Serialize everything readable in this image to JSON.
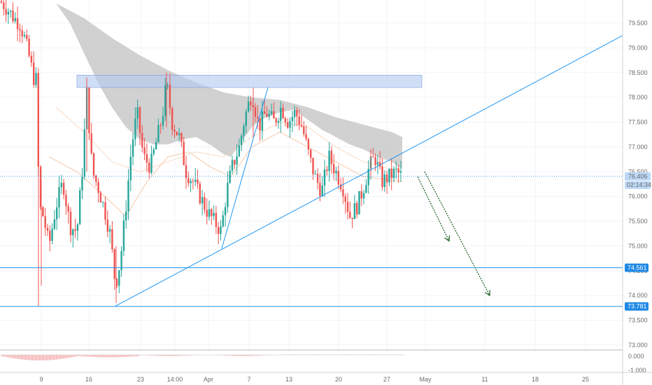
{
  "chart_data": {
    "type": "candlestick",
    "price_axis": {
      "ylim": [
        72.9,
        79.9
      ],
      "ticks": [
        "79.500",
        "79.000",
        "78.500",
        "78.000",
        "77.500",
        "77.000",
        "76.500",
        "76.000",
        "75.500",
        "75.000",
        "74.500",
        "74.000",
        "73.500",
        "73.000"
      ]
    },
    "indicator_axis": {
      "ticks": [
        "0.000",
        "-1.000"
      ]
    },
    "time_axis": {
      "labels": [
        "9",
        "16",
        "23",
        "14:00",
        "Apr",
        "7",
        "13",
        "20",
        "27",
        "May",
        "11",
        "18",
        "25"
      ]
    },
    "current_price": {
      "label": "76.406",
      "value": 76.406,
      "countdown": "02:14:34"
    },
    "horizontal_levels": [
      {
        "label": "74.561",
        "value": 74.561
      },
      {
        "label": "73.781",
        "value": 73.781
      }
    ],
    "resistance_zone": [
      78.2,
      78.45
    ],
    "trendlines": [
      {
        "from": [
          164,
          73.78
        ],
        "to": [
          890,
          79.25
        ]
      },
      {
        "from": [
          317,
          74.95
        ],
        "to": [
          383,
          78.2
        ]
      }
    ],
    "projection_arrows": [
      {
        "from": [
          597,
          76.4
        ],
        "to": [
          642,
          75.1
        ]
      },
      {
        "from": [
          607,
          76.5
        ],
        "to": [
          700,
          74.0
        ]
      }
    ],
    "colors": {
      "up": "#26a69a",
      "down": "#ef5350",
      "line": "#2196f3",
      "cloud": "#bdbdbd",
      "zone": "#b3c9f0",
      "arrow": "#1b5e20"
    }
  }
}
